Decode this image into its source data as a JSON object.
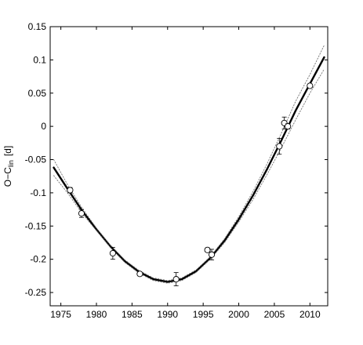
{
  "chart_data": {
    "type": "scatter",
    "title": "",
    "xlabel": "",
    "ylabel": {
      "main": "O−C",
      "subscript": "lin",
      "unit": "[d]"
    },
    "xlim": [
      1973.5,
      2012.5
    ],
    "ylim": [
      -0.27,
      0.15
    ],
    "x_ticks": [
      1975,
      1980,
      1985,
      1990,
      1995,
      2000,
      2005,
      2010
    ],
    "y_ticks": [
      -0.25,
      -0.2,
      -0.15,
      -0.1,
      -0.05,
      0,
      0.05,
      0.1,
      0.15
    ],
    "y_tick_labels": [
      "-0.25",
      "-0.2",
      "-0.15",
      "-0.1",
      "-0.05",
      "0",
      "0.05",
      "0.1",
      "0.15"
    ],
    "grid": false,
    "series": [
      {
        "kind": "points",
        "marker": "open-circle",
        "points": [
          {
            "x": 1976.3,
            "y": -0.096,
            "err": 0.004
          },
          {
            "x": 1977.9,
            "y": -0.131,
            "err": 0.006
          },
          {
            "x": 1982.3,
            "y": -0.191,
            "err": 0.009
          },
          {
            "x": 1986.1,
            "y": -0.222,
            "err": 0.003
          },
          {
            "x": 1991.2,
            "y": -0.23,
            "err": 0.01
          },
          {
            "x": 1995.6,
            "y": -0.186,
            "err": 0.003
          },
          {
            "x": 1996.2,
            "y": -0.193,
            "err": 0.008
          },
          {
            "x": 2005.7,
            "y": -0.03,
            "err": 0.012
          },
          {
            "x": 2006.4,
            "y": 0.005,
            "err": 0.009
          },
          {
            "x": 2006.9,
            "y": 0.0,
            "err": 0.004
          },
          {
            "x": 2010.0,
            "y": 0.061,
            "err": 0.003
          }
        ]
      },
      {
        "kind": "fit-curve",
        "style": "solid-thick",
        "x": [
          1974,
          1976,
          1978,
          1980,
          1982,
          1984,
          1986,
          1988,
          1990,
          1992,
          1994,
          1996,
          1998,
          2000,
          2002,
          2004,
          2006,
          2008,
          2010,
          2012
        ],
        "y": [
          -0.062,
          -0.095,
          -0.127,
          -0.155,
          -0.181,
          -0.203,
          -0.219,
          -0.23,
          -0.234,
          -0.23,
          -0.218,
          -0.198,
          -0.172,
          -0.14,
          -0.104,
          -0.064,
          -0.021,
          0.024,
          0.064,
          0.104
        ]
      },
      {
        "kind": "confidence-upper",
        "style": "dotted",
        "x": [
          1974,
          1976,
          1978,
          1980,
          1982,
          1984,
          1986,
          1988,
          1990,
          1992,
          1994,
          1996,
          1998,
          2000,
          2002,
          2004,
          2006,
          2008,
          2010,
          2012
        ],
        "y": [
          -0.05,
          -0.089,
          -0.123,
          -0.153,
          -0.179,
          -0.201,
          -0.217,
          -0.228,
          -0.232,
          -0.228,
          -0.216,
          -0.196,
          -0.169,
          -0.136,
          -0.098,
          -0.056,
          -0.01,
          0.038,
          0.078,
          0.122
        ]
      },
      {
        "kind": "confidence-lower",
        "style": "dotted",
        "x": [
          1974,
          1976,
          1978,
          1980,
          1982,
          1984,
          1986,
          1988,
          1990,
          1992,
          1994,
          1996,
          1998,
          2000,
          2002,
          2004,
          2006,
          2008,
          2010,
          2012
        ],
        "y": [
          -0.074,
          -0.101,
          -0.131,
          -0.157,
          -0.183,
          -0.205,
          -0.221,
          -0.232,
          -0.236,
          -0.232,
          -0.22,
          -0.2,
          -0.175,
          -0.144,
          -0.11,
          -0.072,
          -0.032,
          0.01,
          0.05,
          0.086
        ]
      }
    ]
  }
}
